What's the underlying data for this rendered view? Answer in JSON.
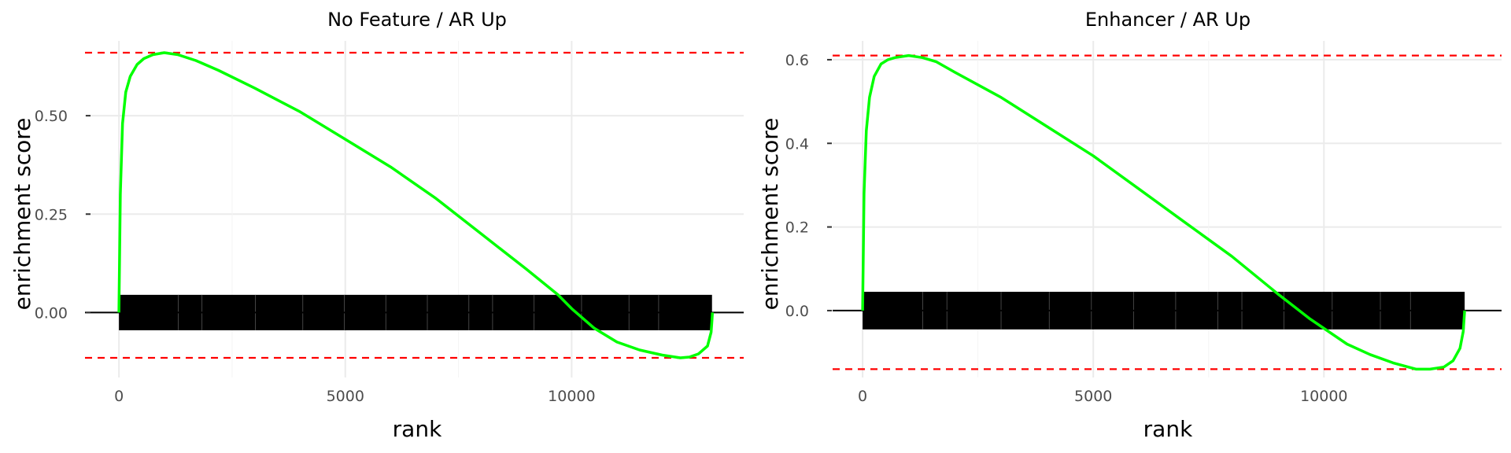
{
  "chart_data": [
    {
      "type": "line",
      "title": "No Feature / AR Up",
      "xlabel": "rank",
      "ylabel": "enrichment score",
      "xlim": [
        -750,
        13800
      ],
      "ylim": [
        -0.165,
        0.69
      ],
      "xticks": [
        0,
        5000,
        10000
      ],
      "xtick_labels": [
        "0",
        "5000",
        "10000"
      ],
      "yticks": [
        0.0,
        0.25,
        0.5
      ],
      "ytick_labels": [
        "0.00",
        "0.25",
        "0.50"
      ],
      "grid": true,
      "line_color": "#00ff00",
      "reference_lines": {
        "max_es": 0.66,
        "min_es": -0.115,
        "color": "#ff0000",
        "style": "dashed"
      },
      "hit_band": {
        "x_from": 0,
        "x_to": 13100,
        "y_from": -0.045,
        "y_to": 0.045,
        "color": "#000000"
      },
      "series": [
        {
          "x": [
            0,
            30,
            80,
            150,
            250,
            400,
            550,
            750,
            1000,
            1300,
            1700,
            2200,
            3000,
            4000,
            5000,
            6000,
            7000,
            8000,
            9000,
            9700,
            10000,
            10500,
            11000,
            11500,
            12000,
            12400,
            12600,
            12800,
            13000,
            13080,
            13100,
            13110
          ],
          "y": [
            0.0,
            0.3,
            0.48,
            0.56,
            0.6,
            0.63,
            0.645,
            0.655,
            0.66,
            0.655,
            0.64,
            0.615,
            0.57,
            0.51,
            0.44,
            0.37,
            0.29,
            0.2,
            0.11,
            0.045,
            0.01,
            -0.04,
            -0.075,
            -0.095,
            -0.108,
            -0.115,
            -0.113,
            -0.105,
            -0.085,
            -0.05,
            -0.02,
            0.0
          ]
        }
      ]
    },
    {
      "type": "line",
      "title": "Enhancer / AR Up",
      "xlabel": "rank",
      "ylabel": "enrichment score",
      "xlim": [
        -650,
        13850
      ],
      "ylim": [
        -0.16,
        0.645
      ],
      "xticks": [
        0,
        5000,
        10000
      ],
      "xtick_labels": [
        "0",
        "5000",
        "10000"
      ],
      "yticks": [
        0.0,
        0.2,
        0.4,
        0.6
      ],
      "ytick_labels": [
        "0.0",
        "0.2",
        "0.4",
        "0.6"
      ],
      "grid": true,
      "line_color": "#00ff00",
      "reference_lines": {
        "max_es": 0.61,
        "min_es": -0.14,
        "color": "#ff0000",
        "style": "dashed"
      },
      "hit_band": {
        "x_from": 0,
        "x_to": 13050,
        "y_from": -0.045,
        "y_to": 0.045,
        "color": "#000000"
      },
      "series": [
        {
          "x": [
            0,
            30,
            80,
            150,
            250,
            400,
            550,
            700,
            1000,
            1300,
            1600,
            2000,
            3000,
            4000,
            5000,
            6000,
            7000,
            8000,
            9000,
            9700,
            10500,
            11000,
            11500,
            12000,
            12300,
            12600,
            12800,
            12950,
            13020,
            13050
          ],
          "y": [
            0.0,
            0.28,
            0.43,
            0.51,
            0.56,
            0.59,
            0.6,
            0.605,
            0.61,
            0.605,
            0.595,
            0.57,
            0.51,
            0.44,
            0.37,
            0.29,
            0.21,
            0.13,
            0.04,
            -0.02,
            -0.08,
            -0.105,
            -0.125,
            -0.14,
            -0.14,
            -0.135,
            -0.12,
            -0.09,
            -0.05,
            0.0
          ]
        }
      ]
    }
  ]
}
